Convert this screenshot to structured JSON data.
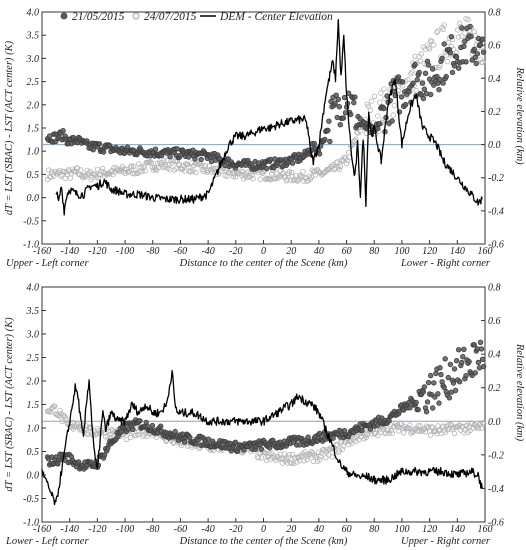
{
  "chart_data": [
    {
      "type": "scatter",
      "panel": "top",
      "legend": [
        {
          "label": "21/05/2015",
          "marker": "filled-circle",
          "color": "#555555"
        },
        {
          "label": "24/07/2015",
          "marker": "hollow-circle",
          "color": "#b5b5b5"
        },
        {
          "label": "DEM - Center Elevation",
          "marker": "line",
          "color": "#000000"
        }
      ],
      "xlabel": "Distance to the center of the Scene (km)",
      "ylabel": "dT = LST (SBAC) - LST (ACT center) (K)",
      "y2label": "Relative elevation (km)",
      "corner_left": "Upper - Left corner",
      "corner_right": "Lower - Right corner",
      "xlim": [
        -160,
        160
      ],
      "ylim": [
        -1.0,
        4.0
      ],
      "y2lim": [
        -0.6,
        0.8
      ],
      "xticks": [
        "-160",
        "-140",
        "-120",
        "-100",
        "-80",
        "-60",
        "-40",
        "-20",
        "0",
        "20",
        "40",
        "60",
        "80",
        "100",
        "120",
        "140",
        "160"
      ],
      "yticks": [
        "-1.0",
        "-0.5",
        "0.0",
        "0.5",
        "1.0",
        "1.5",
        "2.0",
        "2.5",
        "3.0",
        "3.5",
        "4.0"
      ],
      "y2ticks": [
        "-0.6",
        "-0.4",
        "-0.2",
        "0.0",
        "0.2",
        "0.4",
        "0.6",
        "0.8"
      ],
      "reference_line": {
        "axis": "y2",
        "value": 0.0,
        "color": "#7fa6c8"
      },
      "series": [
        {
          "name": "21/05/2015",
          "x": [
            -150,
            -145,
            -140,
            -135,
            -130,
            -125,
            -120,
            -110,
            -100,
            -90,
            -80,
            -70,
            -60,
            -50,
            -40,
            -30,
            -20,
            -10,
            0,
            10,
            20,
            30,
            35,
            40,
            50,
            60,
            70,
            80,
            90,
            100,
            110,
            120,
            130,
            140,
            150,
            158
          ],
          "y": [
            1.3,
            1.35,
            1.2,
            1.25,
            1.15,
            1.1,
            1.1,
            1.05,
            1.0,
            1.0,
            0.98,
            0.96,
            0.95,
            0.93,
            0.9,
            0.8,
            0.72,
            0.7,
            0.72,
            0.74,
            0.8,
            0.9,
            1.1,
            1.0,
            1.8,
            2.2,
            1.6,
            1.4,
            2.0,
            2.3,
            2.6,
            2.5,
            2.9,
            3.2,
            3.3,
            3.1
          ]
        },
        {
          "name": "24/07/2015",
          "x": [
            -150,
            -145,
            -140,
            -135,
            -130,
            -125,
            -120,
            -110,
            -100,
            -90,
            -80,
            -70,
            -60,
            -50,
            -40,
            -30,
            -20,
            -10,
            0,
            10,
            20,
            30,
            35,
            40,
            50,
            60,
            70,
            80,
            90,
            100,
            110,
            120,
            130,
            140,
            150,
            158
          ],
          "y": [
            0.5,
            0.52,
            0.5,
            0.55,
            0.5,
            0.48,
            0.52,
            0.55,
            0.58,
            0.62,
            0.7,
            0.72,
            0.68,
            0.65,
            0.6,
            0.55,
            0.52,
            0.5,
            0.5,
            0.48,
            0.45,
            0.45,
            0.5,
            0.5,
            0.6,
            0.8,
            1.5,
            1.8,
            2.0,
            2.3,
            2.7,
            3.0,
            3.3,
            3.5,
            3.4,
            3.3
          ]
        },
        {
          "name": "DEM - Center Elevation",
          "axis": "y2",
          "x": [
            -150,
            -148,
            -146,
            -144,
            -142,
            -140,
            -135,
            -130,
            -125,
            -120,
            -115,
            -110,
            -105,
            -100,
            -90,
            -80,
            -70,
            -60,
            -50,
            -40,
            -35,
            -30,
            -25,
            -20,
            -15,
            -10,
            -5,
            0,
            5,
            10,
            15,
            20,
            25,
            30,
            32,
            34,
            36,
            40,
            45,
            50,
            52,
            54,
            56,
            58,
            60,
            62,
            64,
            66,
            68,
            70,
            72,
            74,
            76,
            78,
            80,
            85,
            90,
            95,
            100,
            105,
            110,
            115,
            120,
            125,
            130,
            135,
            140,
            145,
            150,
            155,
            158
          ],
          "y": [
            -0.27,
            -0.35,
            -0.25,
            -0.4,
            -0.3,
            -0.27,
            -0.3,
            -0.3,
            -0.25,
            -0.25,
            -0.22,
            -0.27,
            -0.28,
            -0.3,
            -0.3,
            -0.32,
            -0.33,
            -0.33,
            -0.33,
            -0.3,
            -0.2,
            -0.1,
            0.0,
            0.05,
            0.05,
            0.06,
            0.08,
            0.1,
            0.1,
            0.12,
            0.13,
            0.14,
            0.15,
            0.15,
            0.1,
            -0.05,
            -0.1,
            0.0,
            0.3,
            0.5,
            0.4,
            0.75,
            0.4,
            0.65,
            0.3,
            0.1,
            -0.1,
            -0.2,
            0.0,
            -0.3,
            0.05,
            -0.35,
            0.2,
            0.05,
            0.1,
            -0.1,
            0.25,
            0.4,
            0.0,
            0.2,
            0.3,
            0.1,
            0.05,
            0.0,
            -0.1,
            -0.15,
            -0.2,
            -0.25,
            -0.3,
            -0.35,
            -0.33
          ]
        }
      ]
    },
    {
      "type": "scatter",
      "panel": "bottom",
      "xlabel": "Distance to the center of the Scene (km)",
      "ylabel": "dT = LST (SBAC) - LST (ACT center) (K)",
      "y2label": "Relative elevation (km)",
      "corner_left": "Lower - Left corner",
      "corner_right": "Upper - Right corner",
      "xlim": [
        -160,
        160
      ],
      "ylim": [
        -1.0,
        4.0
      ],
      "y2lim": [
        -0.6,
        0.8
      ],
      "xticks": [
        "-160",
        "-140",
        "-120",
        "-100",
        "-80",
        "-60",
        "-40",
        "-20",
        "0",
        "20",
        "40",
        "60",
        "80",
        "100",
        "120",
        "140",
        "160"
      ],
      "yticks": [
        "-1.0",
        "-0.5",
        "0.0",
        "0.5",
        "1.0",
        "1.5",
        "2.0",
        "2.5",
        "3.0",
        "3.5",
        "4.0"
      ],
      "y2ticks": [
        "-0.6",
        "-0.4",
        "-0.2",
        "0.0",
        "0.2",
        "0.4",
        "0.6",
        "0.8"
      ],
      "reference_line": {
        "axis": "y2",
        "value": 0.0,
        "color": "#7fa6c8"
      },
      "series": [
        {
          "name": "21/05/2015",
          "x": [
            -150,
            -145,
            -140,
            -135,
            -130,
            -125,
            -120,
            -110,
            -100,
            -90,
            -80,
            -70,
            -60,
            -50,
            -40,
            -30,
            -20,
            -10,
            0,
            10,
            20,
            30,
            40,
            50,
            60,
            70,
            80,
            90,
            100,
            110,
            120,
            130,
            140,
            150,
            155,
            158
          ],
          "y": [
            0.3,
            0.4,
            0.35,
            0.25,
            0.2,
            0.2,
            0.25,
            0.7,
            1.0,
            1.1,
            1.0,
            0.9,
            0.8,
            0.75,
            0.7,
            0.65,
            0.6,
            0.6,
            0.65,
            0.65,
            0.7,
            0.72,
            0.8,
            0.85,
            0.9,
            1.0,
            1.1,
            1.2,
            1.4,
            1.6,
            1.8,
            2.0,
            2.2,
            2.4,
            2.5,
            2.6
          ]
        },
        {
          "name": "24/07/2015",
          "x": [
            -150,
            -145,
            -140,
            -135,
            -130,
            -125,
            -120,
            -110,
            -100,
            -90,
            -80,
            -70,
            -60,
            -50,
            -40,
            -30,
            -20,
            -10,
            0,
            10,
            20,
            30,
            40,
            50,
            60,
            70,
            80,
            90,
            100,
            110,
            120,
            130,
            140,
            150,
            155,
            158
          ],
          "y": [
            1.4,
            1.2,
            1.0,
            1.1,
            1.0,
            0.9,
            0.95,
            0.9,
            0.85,
            0.9,
            0.95,
            0.8,
            0.7,
            0.65,
            0.6,
            0.6,
            0.58,
            0.55,
            0.4,
            0.35,
            0.35,
            0.38,
            0.4,
            0.5,
            0.7,
            0.85,
            0.9,
            1.0,
            1.0,
            1.0,
            0.95,
            0.95,
            1.0,
            1.0,
            1.0,
            1.05
          ]
        },
        {
          "name": "DEM - Center Elevation",
          "axis": "y2",
          "x": [
            -160,
            -155,
            -150,
            -148,
            -146,
            -144,
            -142,
            -140,
            -138,
            -136,
            -134,
            -132,
            -130,
            -128,
            -126,
            -124,
            -122,
            -120,
            -118,
            -116,
            -114,
            -110,
            -105,
            -100,
            -95,
            -90,
            -85,
            -80,
            -75,
            -70,
            -68,
            -66,
            -64,
            -62,
            -60,
            -50,
            -40,
            -30,
            -20,
            -10,
            0,
            10,
            15,
            20,
            25,
            30,
            35,
            40,
            45,
            50,
            55,
            60,
            65,
            70,
            75,
            80,
            90,
            100,
            110,
            120,
            130,
            140,
            150,
            155,
            158
          ],
          "y": [
            -0.3,
            -0.4,
            -0.5,
            -0.4,
            -0.3,
            -0.2,
            -0.1,
            0.0,
            0.1,
            0.2,
            0.15,
            0.0,
            -0.1,
            0.1,
            0.25,
            0.0,
            -0.2,
            -0.3,
            -0.1,
            0.05,
            -0.05,
            0.05,
            0.0,
            0.0,
            0.1,
            0.05,
            0.1,
            0.05,
            0.05,
            0.1,
            0.2,
            0.3,
            0.1,
            0.05,
            0.05,
            0.05,
            0.0,
            0.0,
            0.0,
            0.0,
            0.0,
            0.05,
            0.08,
            0.1,
            0.15,
            0.12,
            0.1,
            0.05,
            -0.05,
            -0.15,
            -0.25,
            -0.3,
            -0.32,
            -0.33,
            -0.33,
            -0.35,
            -0.35,
            -0.3,
            -0.3,
            -0.3,
            -0.3,
            -0.32,
            -0.3,
            -0.32,
            -0.4
          ]
        }
      ]
    }
  ]
}
